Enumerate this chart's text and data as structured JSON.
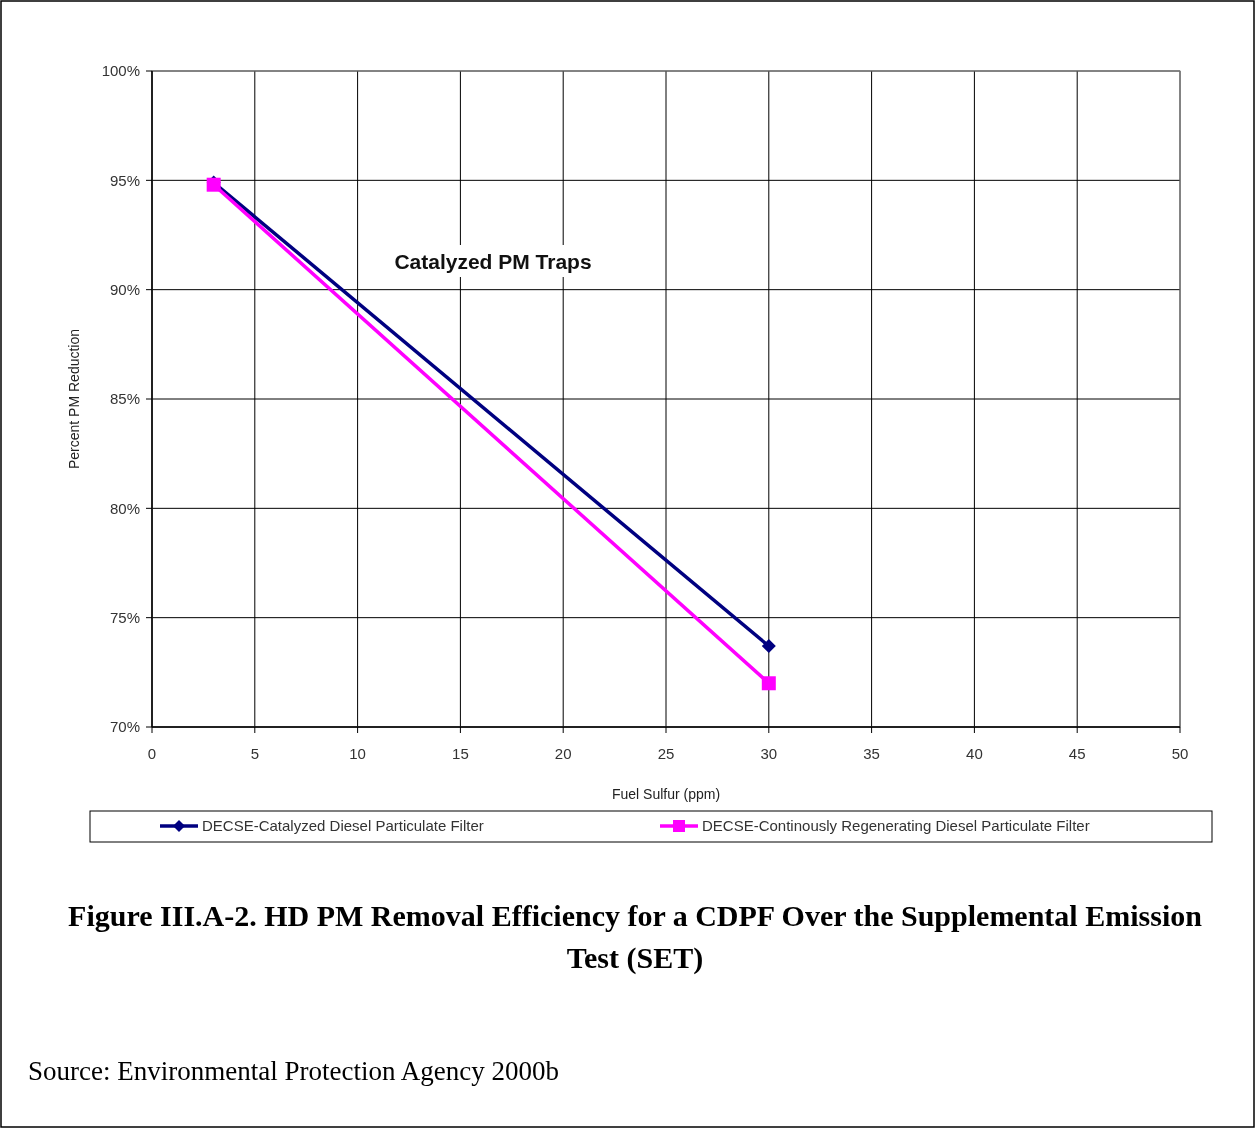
{
  "chart_data": {
    "type": "line",
    "title": "Figure III.A-2.  HD PM Removal Efficiency for a CDPF Over the Supplemental Emission Test (SET)",
    "xlabel": "Fuel Sulfur (ppm)",
    "ylabel": "Percent PM Reduction",
    "x": [
      3,
      30
    ],
    "series": [
      {
        "name": "DECSE-Catalyzed Diesel Particulate Filter",
        "color": "#000080",
        "values": [
          94.9,
          73.7
        ],
        "marker": "diamond"
      },
      {
        "name": "DECSE-Continously Regenerating Diesel Particulate Filter",
        "color": "#ff00ff",
        "values": [
          94.8,
          72.0
        ],
        "marker": "square"
      }
    ],
    "xlim": [
      0,
      50
    ],
    "xticks": [
      0,
      5,
      10,
      15,
      20,
      25,
      30,
      35,
      40,
      45,
      50
    ],
    "ylim": [
      70,
      100
    ],
    "yticks": [
      {
        "value": 70,
        "label": "70%"
      },
      {
        "value": 75,
        "label": "75%"
      },
      {
        "value": 80,
        "label": "80%"
      },
      {
        "value": 85,
        "label": "85%"
      },
      {
        "value": 90,
        "label": "90%"
      },
      {
        "value": 95,
        "label": "95%"
      },
      {
        "value": 100,
        "label": "100%"
      }
    ],
    "grid": true,
    "legend": "bottom",
    "line_style": "solid",
    "annotations": [
      "Catalyzed PM Traps",
      "Source: Environmental Protection Agency 2000b"
    ]
  }
}
